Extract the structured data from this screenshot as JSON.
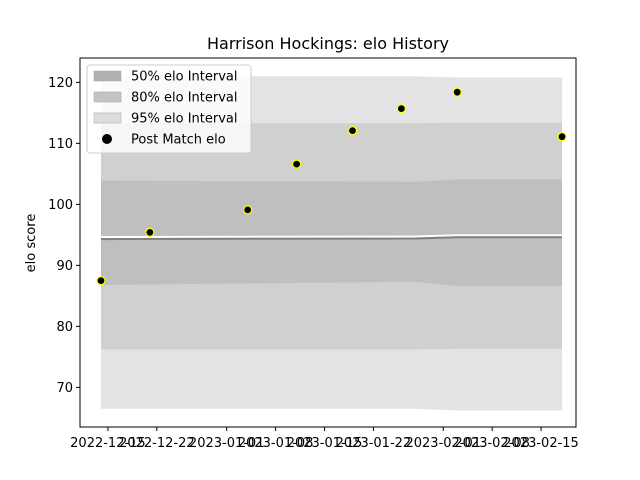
{
  "chart_data": {
    "type": "scatter",
    "title": "Harrison Hockings: elo History",
    "xlabel": "",
    "ylabel": "elo score",
    "xlim": [
      "2022-12-11",
      "2023-02-20"
    ],
    "ylim": [
      63.5,
      124
    ],
    "yticks": [
      70,
      80,
      90,
      100,
      110,
      120
    ],
    "xticks": [
      "2022-12-15",
      "2022-12-22",
      "2023-01-01",
      "2023-01-08",
      "2023-01-15",
      "2023-01-22",
      "2023-02-01",
      "2023-02-08",
      "2023-02-15"
    ],
    "grid": false,
    "legend_position": "top-left",
    "legend": [
      {
        "label": "50% elo Interval",
        "color": "#b0b0b0"
      },
      {
        "label": "80% elo Interval",
        "color": "#c4c4c4"
      },
      {
        "label": "95% elo Interval",
        "color": "#dddddd"
      },
      {
        "label": "Post Match elo",
        "color": "#000000"
      }
    ],
    "bands": {
      "x": [
        "2022-12-14",
        "2023-01-28",
        "2023-02-03",
        "2023-02-18"
      ],
      "b95": {
        "lower": [
          66.5,
          66.5,
          66.2,
          66.2
        ],
        "upper": [
          121.0,
          121.0,
          120.8,
          120.8
        ],
        "color": "#e3e3e3"
      },
      "b80": {
        "lower": [
          76.2,
          76.2,
          76.3,
          76.3
        ],
        "upper": [
          113.3,
          113.3,
          113.4,
          113.4
        ],
        "color": "#d0d0d0"
      },
      "b50": {
        "lower": [
          86.8,
          87.3,
          86.6,
          86.6
        ],
        "upper": [
          103.9,
          103.7,
          104.1,
          104.1
        ],
        "color": "#bfbfbf"
      }
    },
    "mean": {
      "x": [
        "2022-12-14",
        "2023-01-28",
        "2023-02-03",
        "2023-02-18"
      ],
      "y": [
        94.3,
        94.4,
        94.6,
        94.6
      ]
    },
    "series": [
      {
        "name": "Post Match elo",
        "x": [
          "2022-12-14",
          "2022-12-21",
          "2023-01-04",
          "2023-01-11",
          "2023-01-19",
          "2023-01-26",
          "2023-02-03",
          "2023-02-18"
        ],
        "y": [
          87.5,
          95.4,
          99.1,
          106.6,
          112.1,
          115.7,
          118.4,
          111.1
        ],
        "marker_color": "#000000",
        "edge_color": "#ffff00"
      }
    ]
  }
}
